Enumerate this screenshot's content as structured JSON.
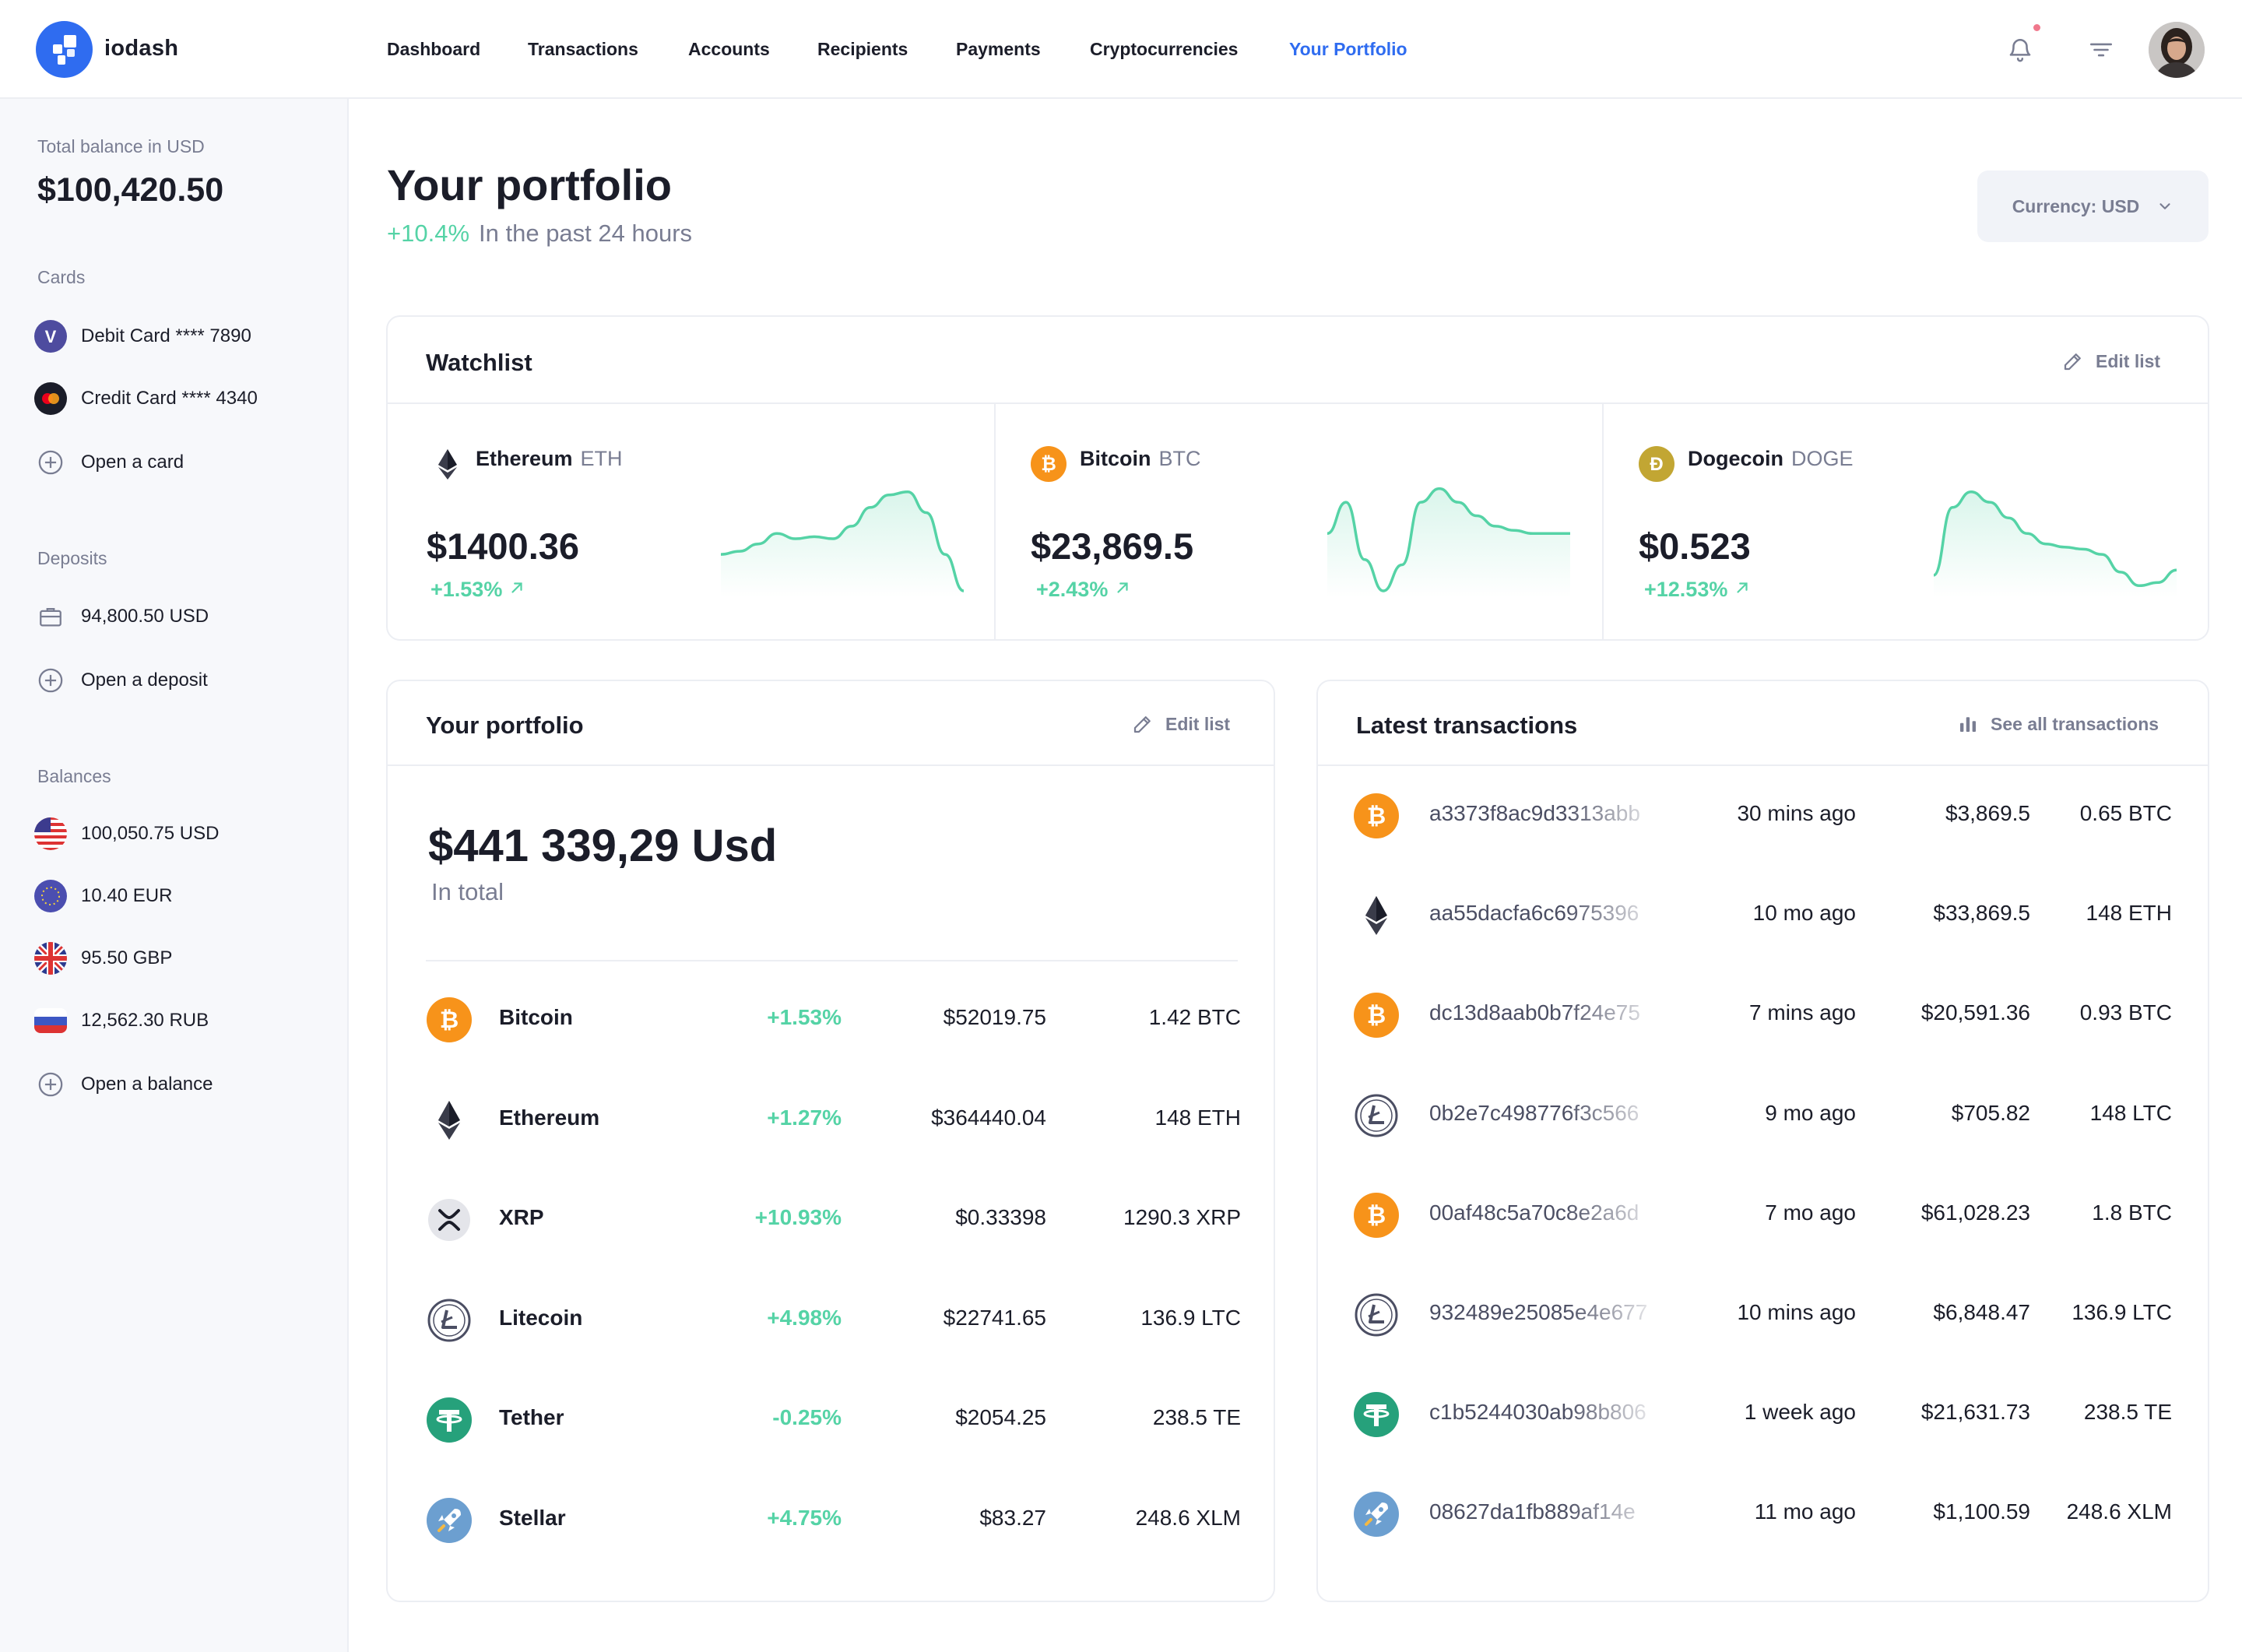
{
  "app": {
    "brand": "iodash"
  },
  "nav": [
    {
      "label": "Dashboard",
      "active": false
    },
    {
      "label": "Transactions",
      "active": false
    },
    {
      "label": "Accounts",
      "active": false
    },
    {
      "label": "Recipients",
      "active": false
    },
    {
      "label": "Payments",
      "active": false
    },
    {
      "label": "Cryptocurrencies",
      "active": false
    },
    {
      "label": "Your Portfolio",
      "active": true
    }
  ],
  "sidebar": {
    "total_label": "Total balance in USD",
    "total_value": "$100,420.50",
    "cards_label": "Cards",
    "cards": [
      {
        "label": "Debit Card **** 7890",
        "icon": "visa-icon"
      },
      {
        "label": "Credit Card **** 4340",
        "icon": "mastercard-icon"
      }
    ],
    "open_card": "Open a card",
    "deposits_label": "Deposits",
    "deposit": "94,800.50 USD",
    "open_deposit": "Open a deposit",
    "balances_label": "Balances",
    "balances": [
      {
        "label": "100,050.75 USD",
        "icon": "us-flag-icon"
      },
      {
        "label": "10.40 EUR",
        "icon": "eu-flag-icon"
      },
      {
        "label": "95.50 GBP",
        "icon": "uk-flag-icon"
      },
      {
        "label": "12,562.30 RUB",
        "icon": "ru-flag-icon"
      }
    ],
    "open_balance": "Open a balance"
  },
  "header": {
    "title": "Your portfolio",
    "change": "+10.4%",
    "period": "In the past 24 hours",
    "currency_button": "Currency: USD"
  },
  "watchlist": {
    "title": "Watchlist",
    "edit": "Edit list",
    "items": [
      {
        "name": "Ethereum",
        "symbol": "ETH",
        "price": "$1400.36",
        "change": "+1.53%",
        "trend": [
          0.35,
          0.38,
          0.45,
          0.55,
          0.5,
          0.52,
          0.5,
          0.62,
          0.8,
          0.92,
          0.95,
          0.75,
          0.35,
          0.0
        ]
      },
      {
        "name": "Bitcoin",
        "symbol": "BTC",
        "price": "$23,869.5",
        "change": "+2.43%",
        "trend": [
          0.55,
          0.85,
          0.3,
          0.0,
          0.25,
          0.85,
          0.98,
          0.85,
          0.72,
          0.62,
          0.58,
          0.55,
          0.55,
          0.55
        ]
      },
      {
        "name": "Dogecoin",
        "symbol": "DOGE",
        "price": "$0.523",
        "change": "+12.53%",
        "trend": [
          0.15,
          0.8,
          0.95,
          0.85,
          0.7,
          0.55,
          0.45,
          0.42,
          0.4,
          0.35,
          0.18,
          0.05,
          0.08,
          0.2
        ]
      }
    ]
  },
  "portfolio": {
    "title": "Your portfolio",
    "edit": "Edit list",
    "total": "$441 339,29 Usd",
    "total_sub": "In total",
    "rows": [
      {
        "icon": "bitcoin-icon",
        "name": "Bitcoin",
        "change": "+1.53%",
        "value": "$52019.75",
        "amount": "1.42 BTC"
      },
      {
        "icon": "ethereum-icon",
        "name": "Ethereum",
        "change": "+1.27%",
        "value": "$364440.04",
        "amount": "148 ETH"
      },
      {
        "icon": "xrp-icon",
        "name": "XRP",
        "change": "+10.93%",
        "value": "$0.33398",
        "amount": "1290.3 XRP"
      },
      {
        "icon": "litecoin-icon",
        "name": "Litecoin",
        "change": "+4.98%",
        "value": "$22741.65",
        "amount": "136.9 LTC"
      },
      {
        "icon": "tether-icon",
        "name": "Tether",
        "change": "-0.25%",
        "value": "$2054.25",
        "amount": "238.5 TE"
      },
      {
        "icon": "stellar-icon",
        "name": "Stellar",
        "change": "+4.75%",
        "value": "$83.27",
        "amount": "248.6 XLM"
      }
    ]
  },
  "transactions": {
    "title": "Latest transactions",
    "see_all": "See all transactions",
    "rows": [
      {
        "icon": "bitcoin-icon",
        "hash": "a3373f8ac9d3313abb",
        "time": "30 mins ago",
        "value": "$3,869.5",
        "amount": "0.65 BTC"
      },
      {
        "icon": "ethereum-icon",
        "hash": "aa55dacfa6c6975396",
        "time": "10 mo ago",
        "value": "$33,869.5",
        "amount": "148 ETH"
      },
      {
        "icon": "bitcoin-icon",
        "hash": "dc13d8aab0b7f24e75",
        "time": "7 mins ago",
        "value": "$20,591.36",
        "amount": "0.93 BTC"
      },
      {
        "icon": "litecoin-icon",
        "hash": "0b2e7c498776f3c566",
        "time": "9 mo ago",
        "value": "$705.82",
        "amount": "148 LTC"
      },
      {
        "icon": "bitcoin-icon",
        "hash": "00af48c5a70c8e2a6d",
        "time": "7 mo ago",
        "value": "$61,028.23",
        "amount": "1.8 BTC"
      },
      {
        "icon": "litecoin-icon",
        "hash": "932489e25085e4e677",
        "time": "10 mins ago",
        "value": "$6,848.47",
        "amount": "136.9 LTC"
      },
      {
        "icon": "tether-icon",
        "hash": "c1b5244030ab98b806",
        "time": "1 week ago",
        "value": "$21,631.73",
        "amount": "238.5 TE"
      },
      {
        "icon": "stellar-icon",
        "hash": "08627da1fb889af14e",
        "time": "11 mo ago",
        "value": "$1,100.59",
        "amount": "248.6 XLM"
      }
    ]
  },
  "colors": {
    "accent": "#2f6cf0",
    "positive": "#55d3a6",
    "muted": "#797d92",
    "bitcoin": "#f7931a",
    "tether": "#26a17b",
    "dogecoin": "#c2a633"
  }
}
